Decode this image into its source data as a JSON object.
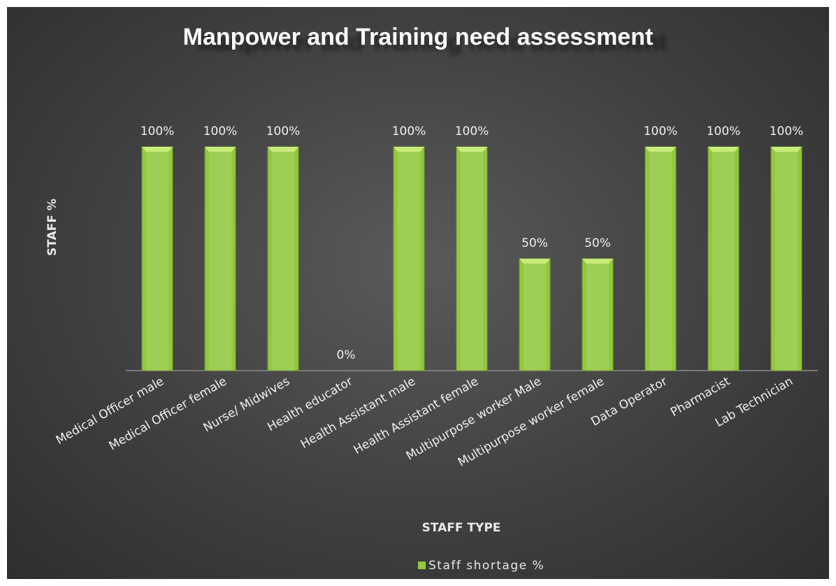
{
  "chart_data": {
    "type": "bar",
    "title": "Manpower and Training need assessment",
    "x_label": "STAFF TYPE",
    "y_label": "STAFF %",
    "categories": [
      "Medical Officer male",
      "Medical Officer female",
      "Nurse/ Midwives",
      "Health educator",
      "Health Assistant male",
      "Health Assistant female",
      "Multipurpose worker Male",
      "Multipurpose worker female",
      "Data Operator",
      "Pharmacist",
      "Lab Technician"
    ],
    "series": [
      {
        "name": "Staff shortage %",
        "color": "#92c83e",
        "values": [
          100,
          100,
          100,
          0,
          100,
          100,
          50,
          50,
          100,
          100,
          100
        ],
        "value_labels": [
          "100%",
          "100%",
          "100%",
          "0%",
          "100%",
          "100%",
          "50%",
          "50%",
          "100%",
          "100%",
          "100%"
        ]
      }
    ],
    "legend": "bottom"
  }
}
